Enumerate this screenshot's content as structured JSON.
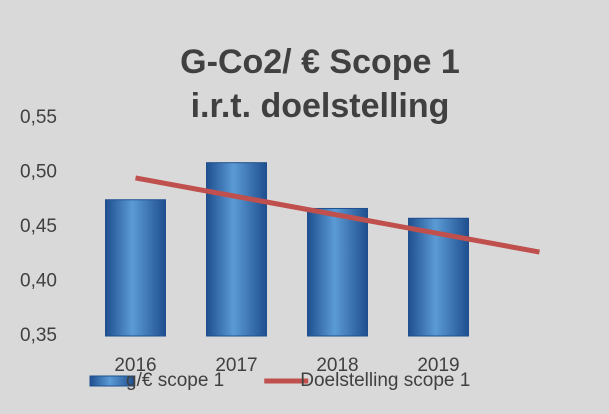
{
  "chart_data": {
    "type": "bar",
    "title": "G-Co2/ € Scope 1 i.r.t. doelstelling",
    "categories": [
      "2016",
      "2017",
      "2018",
      "2019",
      null
    ],
    "series": [
      {
        "name": "g/€ scope 1",
        "type": "bar",
        "color": "#2f6fc0",
        "values": [
          0.475,
          0.509,
          0.467,
          0.458,
          null
        ]
      },
      {
        "name": "Doelstelling scope 1",
        "type": "line",
        "color": "#c0504d",
        "values": [
          0.495,
          0.478,
          0.461,
          0.444,
          0.427
        ]
      }
    ],
    "ylim": [
      0.35,
      0.55
    ],
    "yticks": [
      {
        "value": 0.35,
        "label": "0,35"
      },
      {
        "value": 0.4,
        "label": "0,40"
      },
      {
        "value": 0.45,
        "label": "0,45"
      },
      {
        "value": 0.5,
        "label": "0,50"
      },
      {
        "value": 0.55,
        "label": "0,55"
      }
    ],
    "grid": false,
    "legend": "bottom"
  }
}
